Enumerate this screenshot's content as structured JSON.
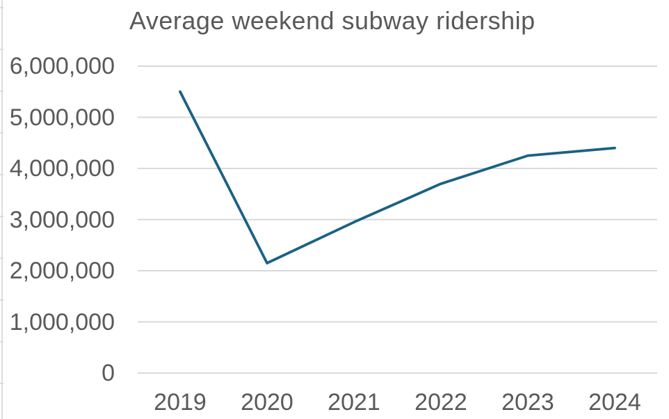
{
  "chart_data": {
    "type": "line",
    "title": "Average weekend subway ridership",
    "categories": [
      "2019",
      "2020",
      "2021",
      "2022",
      "2023",
      "2024"
    ],
    "values": [
      5500000,
      2150000,
      2950000,
      3700000,
      4250000,
      4400000
    ],
    "xlabel": "",
    "ylabel": "",
    "ylim": [
      0,
      6000000
    ],
    "y_ticks": [
      0,
      1000000,
      2000000,
      3000000,
      4000000,
      5000000,
      6000000
    ],
    "y_tick_labels": [
      "0",
      "1,000,000",
      "2,000,000",
      "3,000,000",
      "4,000,000",
      "5,000,000",
      "6,000,000"
    ],
    "grid": "horizontal",
    "legend_position": "none",
    "colors": {
      "line": "#1a6284",
      "grid": "#d9d9d9",
      "text": "#595959",
      "background": "#ffffff"
    }
  }
}
